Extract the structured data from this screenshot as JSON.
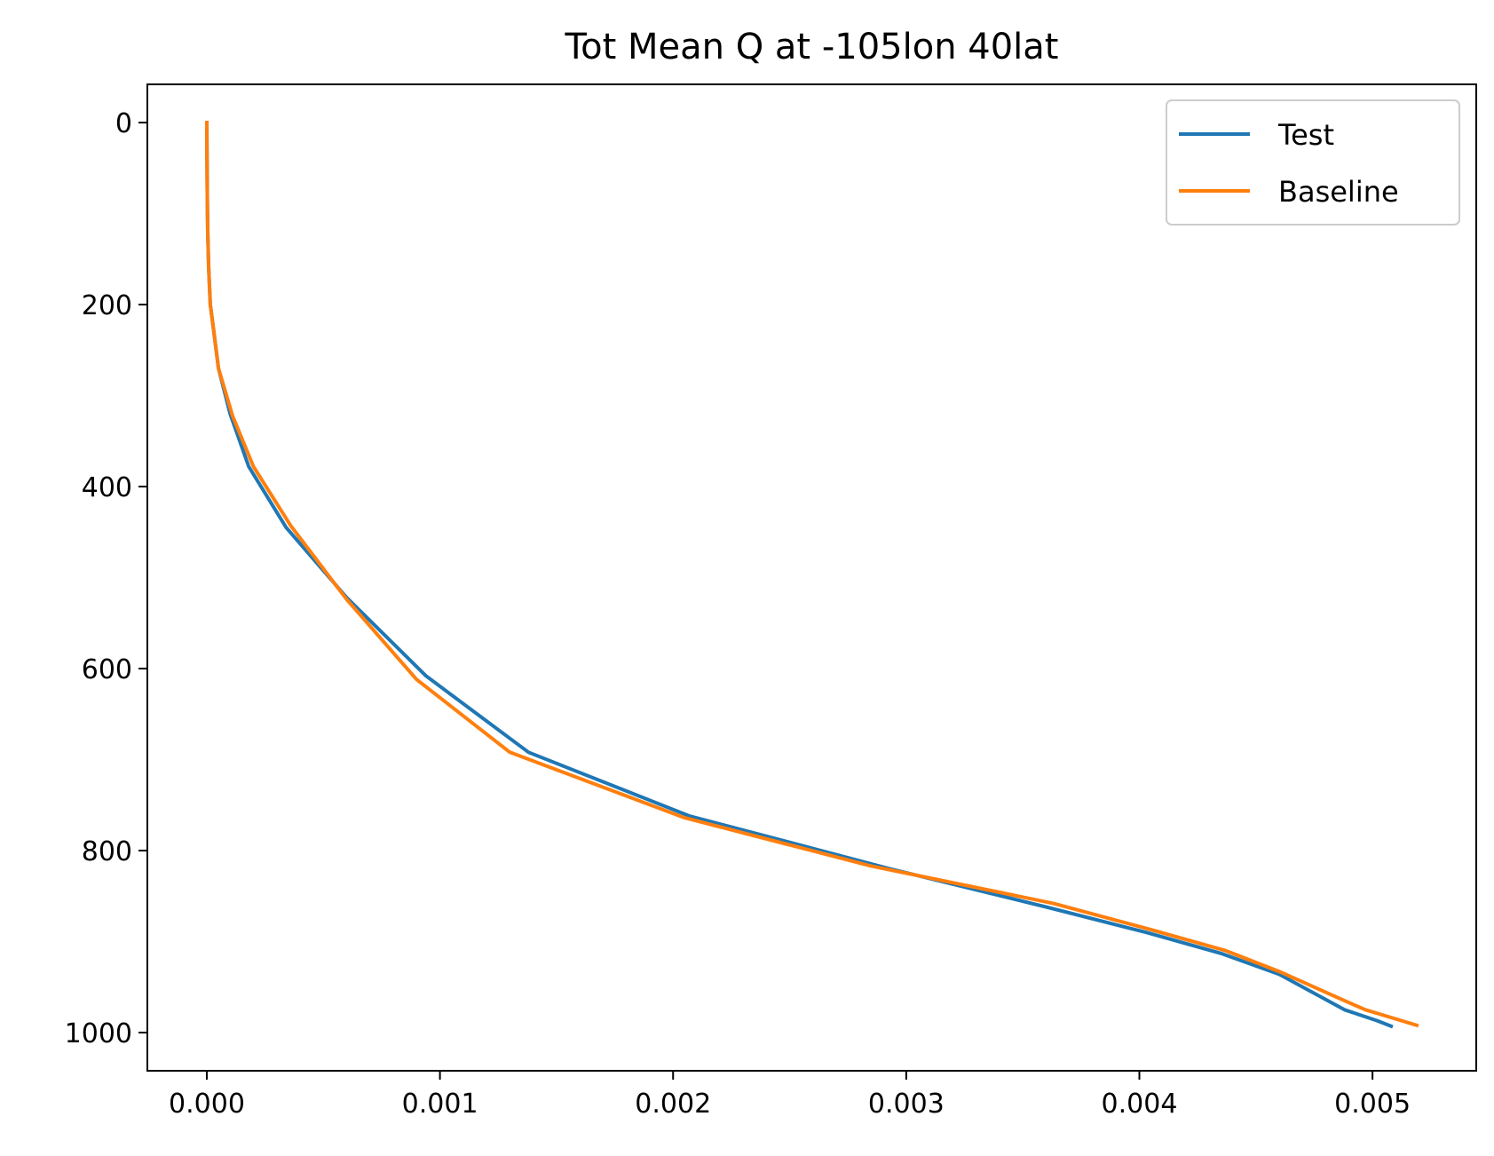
{
  "chart_data": {
    "type": "line",
    "title": "Tot Mean Q at -105lon 40lat",
    "xlabel": "",
    "ylabel": "",
    "xlim": [
      -0.000255,
      0.005445
    ],
    "ylim": [
      1042,
      -42
    ],
    "y_inverted": true,
    "x_ticks": [
      0.0,
      0.001,
      0.002,
      0.003,
      0.004,
      0.005
    ],
    "x_tick_labels": [
      "0.000",
      "0.001",
      "0.002",
      "0.003",
      "0.004",
      "0.005"
    ],
    "y_ticks": [
      0,
      200,
      400,
      600,
      800,
      1000
    ],
    "y_tick_labels": [
      "0",
      "200",
      "400",
      "600",
      "800",
      "1000"
    ],
    "grid": false,
    "legend_position": "top-right",
    "series": [
      {
        "name": "Test",
        "color": "#1f77b4",
        "x": [
          0.0,
          1e-06,
          2e-06,
          4e-06,
          8e-06,
          1.5e-05,
          3e-05,
          5e-05,
          0.0001,
          0.00018,
          0.00034,
          0.0006,
          0.00094,
          0.00138,
          0.00207,
          0.00293,
          0.0036,
          0.00403,
          0.00435,
          0.0046,
          0.00488,
          0.00502,
          0.00508
        ],
        "y": [
          0,
          40,
          80,
          120,
          160,
          200,
          230,
          270,
          320,
          378,
          445,
          522,
          608,
          692,
          762,
          820,
          862,
          890,
          913,
          936,
          975,
          987,
          993
        ]
      },
      {
        "name": "Baseline",
        "color": "#ff7f0e",
        "x": [
          0.0,
          1e-06,
          2e-06,
          4e-06,
          8e-06,
          1.5e-05,
          3e-05,
          5e-05,
          0.00011,
          0.0002,
          0.00036,
          0.0006,
          0.0009,
          0.0013,
          0.00205,
          0.00285,
          0.00363,
          0.00405,
          0.00437,
          0.00461,
          0.00488,
          0.00497,
          0.00519
        ],
        "y": [
          0,
          40,
          80,
          120,
          160,
          200,
          230,
          270,
          322,
          378,
          443,
          524,
          612,
          692,
          764,
          817,
          858,
          887,
          910,
          934,
          965,
          975,
          992
        ]
      }
    ]
  }
}
